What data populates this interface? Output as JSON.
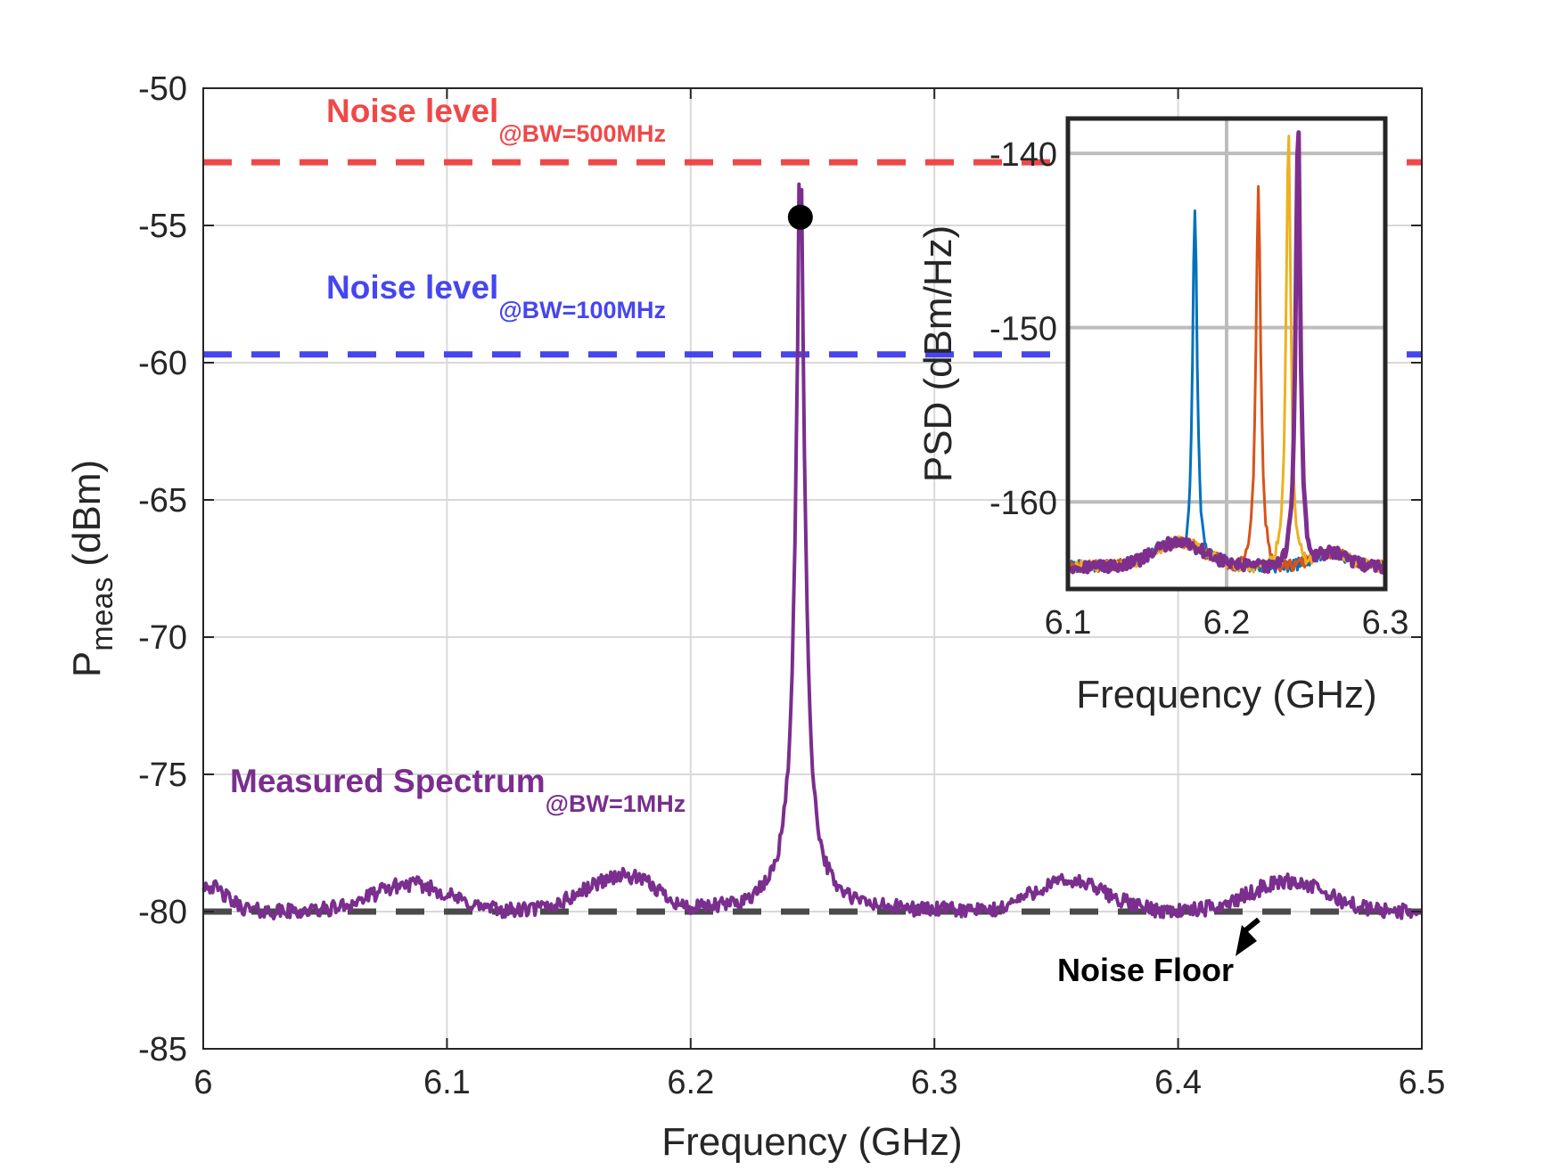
{
  "chart_data": [
    {
      "type": "line",
      "name": "main",
      "xlabel": "Frequency (GHz)",
      "ylabel_main": "P",
      "ylabel_sub": "meas",
      "ylabel_unit": "(dBm)",
      "xlim": [
        6,
        6.5
      ],
      "ylim": [
        -85,
        -50
      ],
      "xticks": [
        6,
        6.1,
        6.2,
        6.3,
        6.4,
        6.5
      ],
      "xtick_labels": [
        "6",
        "6.1",
        "6.2",
        "6.3",
        "6.4",
        "6.5"
      ],
      "yticks": [
        -50,
        -55,
        -60,
        -65,
        -70,
        -75,
        -80,
        -85
      ],
      "ytick_labels": [
        "-50",
        "-55",
        "-60",
        "-65",
        "-70",
        "-75",
        "-80",
        "-85"
      ],
      "grid": true,
      "reference_lines": [
        {
          "name": "noise-500mhz",
          "y": -52.7,
          "color": "#f04848",
          "label": "Noise level",
          "sub": "@BW=500MHz"
        },
        {
          "name": "noise-100mhz",
          "y": -59.7,
          "color": "#4646f0",
          "label": "Noise level",
          "sub": "@BW=100MHz"
        },
        {
          "name": "noise-floor",
          "y": -80.0,
          "color": "#4a4a4a",
          "label": "Noise Floor",
          "sub": ""
        }
      ],
      "series": [
        {
          "name": "Measured Spectrum",
          "sub": "@BW=1MHz",
          "color": "#7a2e8e",
          "baseline": -80,
          "humps": [
            [
              6.0,
              1.0,
              0.012
            ],
            [
              6.085,
              1.0,
              0.022
            ],
            [
              6.172,
              1.3,
              0.022
            ],
            [
              6.355,
              1.1,
              0.022
            ],
            [
              6.445,
              1.1,
              0.022
            ]
          ],
          "dips": [
            [
              6.31,
              0.5,
              0.013
            ],
            [
              6.2,
              0.15,
              0.012
            ]
          ],
          "peak": {
            "x": 6.245,
            "y": -54.7
          }
        }
      ],
      "marker": {
        "x": 6.245,
        "y": -54.7
      }
    },
    {
      "type": "line",
      "name": "inset",
      "xlabel": "Frequency (GHz)",
      "ylabel": "PSD (dBm/Hz)",
      "xlim": [
        6.1,
        6.3
      ],
      "ylim": [
        -165,
        -138
      ],
      "xticks": [
        6.1,
        6.2,
        6.3
      ],
      "xtick_labels": [
        "6.1",
        "6.2",
        "6.3"
      ],
      "yticks": [
        -140,
        -150,
        -160
      ],
      "ytick_labels": [
        "-140",
        "-150",
        "-160"
      ],
      "grid": true,
      "series": [
        {
          "name": "blue",
          "color": "#0072bd",
          "peak_x": 6.18,
          "peak_y": -143.3
        },
        {
          "name": "orange",
          "color": "#d95319",
          "peak_x": 6.22,
          "peak_y": -141.9
        },
        {
          "name": "yellow",
          "color": "#edb120",
          "peak_x": 6.239,
          "peak_y": -139.0
        },
        {
          "name": "purple",
          "color": "#7e2f8e",
          "peak_x": 6.245,
          "peak_y": -138.8
        }
      ]
    }
  ],
  "annotations": {
    "noise_500_label": "Noise level",
    "noise_500_sub": "@BW=500MHz",
    "noise_100_label": "Noise level",
    "noise_100_sub": "@BW=100MHz",
    "spectrum_label": "Measured Spectrum",
    "spectrum_sub": "@BW=1MHz",
    "noise_floor_label": "Noise Floor"
  },
  "colors": {
    "red": "#f04848",
    "blue": "#4646f0",
    "purple": "#7a2e8e",
    "dark": "#4a4a4a"
  }
}
